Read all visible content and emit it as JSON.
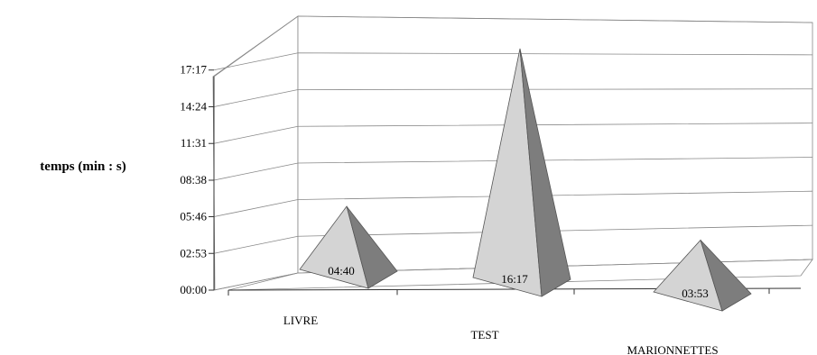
{
  "chart_data": {
    "type": "bar",
    "style": "3d-pyramid",
    "title": "",
    "xlabel": "",
    "ylabel": "temps (min : s)",
    "categories": [
      "LIVRE",
      "TEST",
      "MARIONNETTES"
    ],
    "values": [
      280,
      977,
      233
    ],
    "data_labels": [
      "04:40",
      "16:17",
      "03:53"
    ],
    "y_ticks": [
      "00:00",
      "02:53",
      "05:46",
      "08:38",
      "11:31",
      "14:24",
      "17:17"
    ],
    "y_tick_values": [
      0,
      173,
      346,
      518,
      691,
      864,
      1037
    ],
    "ylim": [
      0,
      1210
    ],
    "grid": true,
    "legend": "none",
    "colors": {
      "face_light": "#d4d4d4",
      "face_dark": "#7d7d7d",
      "grid": "#888888"
    }
  }
}
